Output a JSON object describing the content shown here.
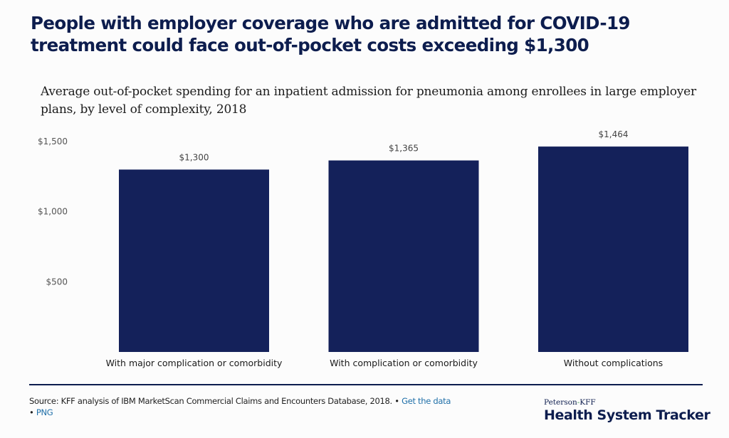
{
  "title": "People with employer coverage who are admitted for COVID-19 treatment could face out-of-pocket costs exceeding $1,300",
  "footer": {
    "source": "Source: KFF analysis of IBM MarketScan Commercial Claims and Encounters Database, 2018. • ",
    "get_data_link": "Get the data",
    "bullet": "• ",
    "png_link": "PNG"
  },
  "logo": {
    "top_part1": "Peterson",
    "top_hyphen": "-",
    "top_part2": "KFF",
    "main": "Health System Tracker"
  },
  "colors": {
    "bar": "#14215a",
    "title": "#0d1d4e",
    "link": "#1f6fa8"
  },
  "chart_data": {
    "type": "bar",
    "title": "Average out-of-pocket spending for an inpatient admission for pneumonia among enrollees in large employer plans, by level of complexity, 2018",
    "xlabel": "",
    "ylabel": "",
    "categories": [
      "With major complication or comorbidity",
      "With complication or comorbidity",
      "Without complications"
    ],
    "values": [
      1300,
      1365,
      1464
    ],
    "data_labels": [
      "$1,300",
      "$1,365",
      "$1,464"
    ],
    "ylim": [
      0,
      1500
    ],
    "yticks": [
      500,
      1000,
      1500
    ],
    "ytick_labels": [
      "$500",
      "$1,000",
      "$1,500"
    ],
    "grid": false,
    "legend": "none"
  }
}
